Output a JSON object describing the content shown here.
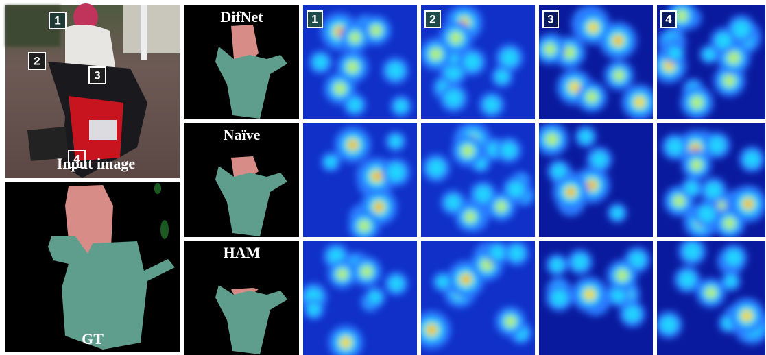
{
  "input": {
    "label": "Input image",
    "markers": [
      "1",
      "2",
      "3",
      "4"
    ]
  },
  "gt": {
    "label": "GT"
  },
  "rows": [
    {
      "label": "DifNet"
    },
    {
      "label": "Naïve"
    },
    {
      "label": "HAM"
    }
  ],
  "columns": [
    "1",
    "2",
    "3",
    "4"
  ]
}
